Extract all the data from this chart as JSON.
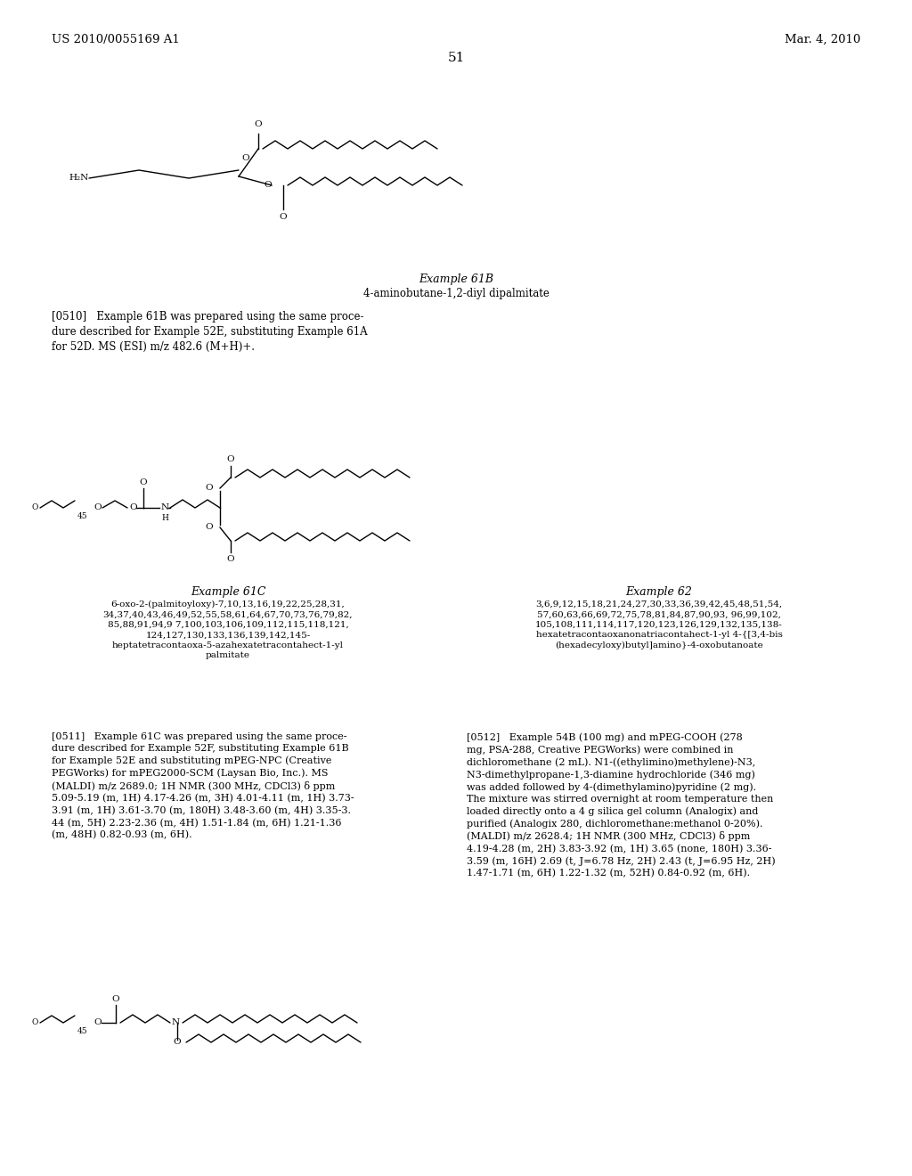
{
  "background_color": "#ffffff",
  "header_left": "US 2010/0055169 A1",
  "header_right": "Mar. 4, 2010",
  "page_number": "51",
  "example_61B_label": "Example 61B",
  "example_61B_sublabel": "4-aminobutane-1,2-diyl dipalmitate",
  "example_61B_para": "[0510]   Example 61B was prepared using the same proce-\ndure described for Example 52E, substituting Example 61A\nfor 52D. MS (ESI) m/z 482.6 (M+H)+.",
  "example_61C_label": "Example 61C",
  "example_61C_sublabel": "6-oxo-2-(palmitoyloxy)-7,10,13,16,19,22,25,28,31,\n34,37,40,43,46,49,52,55,58,61,64,67,70,73,76,79,82,\n85,88,91,94,9 7,100,103,106,109,112,115,118,121,\n124,127,130,133,136,139,142,145-\nheptatetracontaoxa-5-azahexatetracontahect-1-yl\npalmitate",
  "example_61C_para": "[0511]   Example 61C was prepared using the same proce-\ndure described for Example 52F, substituting Example 61B\nfor Example 52E and substituting mPEG-NPC (Creative\nPEGWorks) for mPEG2000-SCM (Laysan Bio, Inc.). MS\n(MALDI) m/z 2689.0; 1H NMR (300 MHz, CDCl3) δ ppm\n5.09-5.19 (m, 1H) 4.17-4.26 (m, 3H) 4.01-4.11 (m, 1H) 3.73-\n3.91 (m, 1H) 3.61-3.70 (m, 180H) 3.48-3.60 (m, 4H) 3.35-3.\n44 (m, 5H) 2.23-2.36 (m, 4H) 1.51-1.84 (m, 6H) 1.21-1.36\n(m, 48H) 0.82-0.93 (m, 6H).",
  "example_62_label": "Example 62",
  "example_62_sublabel": "3,6,9,12,15,18,21,24,27,30,33,36,39,42,45,48,51,54,\n57,60,63,66,69,72,75,78,81,84,87,90,93, 96,99,102,\n105,108,111,114,117,120,123,126,129,132,135,138-\nhexatetracontaoxanonatriacontahect-1-yl 4-{[3,4-bis\n(hexadecyloxy)butyl]amino}-4-oxobutanoate",
  "example_62_para": "[0512]   Example 54B (100 mg) and mPEG-COOH (278\nmg, PSA-288, Creative PEGWorks) were combined in\ndichloromethane (2 mL). N1-((ethylimino)methylene)-N3,\nN3-dimethylpropane-1,3-diamine hydrochloride (346 mg)\nwas added followed by 4-(dimethylamino)pyridine (2 mg).\nThe mixture was stirred overnight at room temperature then\nloaded directly onto a 4 g silica gel column (Analogix) and\npurified (Analogix 280, dichloromethane:methanol 0-20%).\n(MALDI) m/z 2628.4; 1H NMR (300 MHz, CDCl3) δ ppm\n4.19-4.28 (m, 2H) 3.83-3.92 (m, 1H) 3.65 (none, 180H) 3.36-\n3.59 (m, 16H) 2.69 (t, J=6.78 Hz, 2H) 2.43 (t, J=6.95 Hz, 2H)\n1.47-1.71 (m, 6H) 1.22-1.32 (m, 52H) 0.84-0.92 (m, 6H)."
}
